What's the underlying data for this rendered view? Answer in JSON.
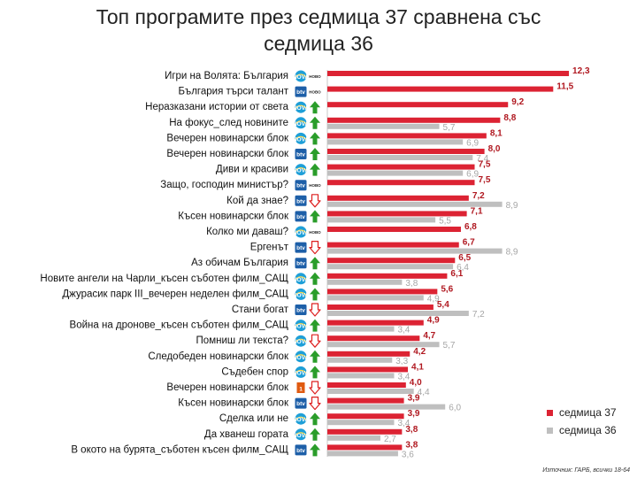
{
  "title": {
    "line1": "Топ програмите през седмица 37 сравнена със",
    "line2": "седмица 36"
  },
  "source": "Източник: ГАРБ, всички 18-64",
  "colors": {
    "week37": "#dc2333",
    "week36": "#bfbfbf",
    "up": "#2a9d2a",
    "down": "#dd2020",
    "nova": "#1e9fd8",
    "btv": "#1d5fa8",
    "tv1": "#e05a10"
  },
  "chart_data": {
    "type": "bar",
    "orientation": "horizontal",
    "title": "Топ програмите през седмица 37 сравнена със седмица 36",
    "xlim": [
      0,
      13
    ],
    "legend_position": "bottom-right",
    "categories": [
      "Игри на Волята: България",
      "България търси талант",
      "Неразказани истории от света",
      "На фокус_след новините",
      "Вечерен новинарски блок",
      "Вечерен новинарски блок",
      "Диви и красиви",
      "Защо, господин министър?",
      "Кой да знае?",
      "Късен новинарски блок",
      "Колко ми даваш?",
      "Ергенът",
      "Аз обичам България",
      "Новите ангели на Чарли_късен съботен филм_САЩ",
      "Джурасик парк III_вечерен неделен филм_САЩ",
      "Стани богат",
      "Война на дронове_късен съботен филм_САЩ",
      "Помниш ли текста?",
      "Следобеден новинарски блок",
      "Съдебен спор",
      "Вечерен новинарски блок",
      "Късен новинарски блок",
      "Сделка или не",
      "Да хванеш гората",
      "В окото на бурята_съботен късен филм_САЩ"
    ],
    "channels": [
      "nova",
      "btv",
      "nova",
      "nova",
      "nova",
      "btv",
      "nova",
      "btv",
      "btv",
      "btv",
      "nova",
      "btv",
      "btv",
      "nova",
      "nova",
      "btv",
      "nova",
      "nova",
      "nova",
      "nova",
      "tv1",
      "btv",
      "nova",
      "nova",
      "btv"
    ],
    "channel_labels": {
      "nova": "NOVA",
      "btv": "btv",
      "tv1": "1"
    },
    "markers": [
      "new",
      "new",
      "up",
      "up",
      "up",
      "up",
      "up",
      "new",
      "down",
      "up",
      "new",
      "down",
      "up",
      "up",
      "up",
      "down",
      "up",
      "down",
      "up",
      "up",
      "down",
      "down",
      "up",
      "up",
      "up"
    ],
    "new_label": "НОВО",
    "series": [
      {
        "name": "седмица 37",
        "values": [
          12.3,
          11.5,
          9.2,
          8.8,
          8.1,
          8.0,
          7.5,
          7.5,
          7.2,
          7.1,
          6.8,
          6.7,
          6.5,
          6.1,
          5.6,
          5.4,
          4.9,
          4.7,
          4.2,
          4.1,
          4.0,
          3.9,
          3.9,
          3.8,
          3.8
        ],
        "labels": [
          "12,3",
          "11,5",
          "9,2",
          "8,8",
          "8,1",
          "8,0",
          "7,5",
          "7,5",
          "7,2",
          "7,1",
          "6,8",
          "6,7",
          "6,5",
          "6,1",
          "5,6",
          "5,4",
          "4,9",
          "4,7",
          "4,2",
          "4,1",
          "4,0",
          "3,9",
          "3,9",
          "3,8",
          "3,8"
        ]
      },
      {
        "name": "седмица 36",
        "values": [
          null,
          null,
          null,
          5.7,
          6.9,
          7.4,
          6.9,
          null,
          8.9,
          5.5,
          null,
          8.9,
          6.4,
          3.8,
          4.9,
          7.2,
          3.4,
          5.7,
          3.3,
          3.4,
          4.4,
          6.0,
          3.4,
          2.7,
          3.6
        ],
        "labels": [
          "",
          "",
          "",
          "5,7",
          "6,9",
          "7,4",
          "6,9",
          "",
          "8,9",
          "5,5",
          "",
          "8,9",
          "6,4",
          "3,8",
          "4,9",
          "7,2",
          "3,4",
          "5,7",
          "3,3",
          "3,4",
          "4,4",
          "6,0",
          "3,4",
          "2,7",
          "3,6"
        ]
      }
    ]
  }
}
